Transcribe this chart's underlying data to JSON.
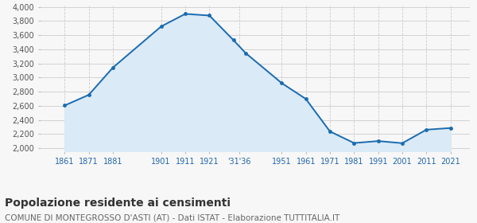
{
  "years": [
    1861,
    1871,
    1881,
    1901,
    1911,
    1921,
    1931,
    1936,
    1951,
    1961,
    1971,
    1981,
    1991,
    2001,
    2011,
    2021
  ],
  "population": [
    2604,
    2755,
    3141,
    3724,
    3902,
    3879,
    3530,
    3348,
    2921,
    2697,
    2236,
    2072,
    2100,
    2070,
    2261,
    2285
  ],
  "line_color": "#1b6cb0",
  "fill_color": "#daeaf7",
  "marker_color": "#1b6cb0",
  "grid_color": "#cccccc",
  "background_color": "#f7f7f7",
  "ylim": [
    1950,
    4020
  ],
  "yticks": [
    2000,
    2200,
    2400,
    2600,
    2800,
    3000,
    3200,
    3400,
    3600,
    3800,
    4000
  ],
  "x_positions": [
    1861,
    1871,
    1881,
    1901,
    1911,
    1921,
    1933.5,
    1951,
    1961,
    1971,
    1981,
    1991,
    2001,
    2011,
    2021
  ],
  "x_labels": [
    "1861",
    "1871",
    "1881",
    "1901",
    "1911",
    "1921",
    "'31'36",
    "1951",
    "1961",
    "1971",
    "1981",
    "1991",
    "2001",
    "2011",
    "2021"
  ],
  "xlim": [
    1851,
    2029
  ],
  "title": "Popolazione residente ai censimenti",
  "subtitle": "COMUNE DI MONTEGROSSO D'ASTI (AT) - Dati ISTAT - Elaborazione TUTTITALIA.IT",
  "title_fontsize": 10,
  "subtitle_fontsize": 7.5
}
